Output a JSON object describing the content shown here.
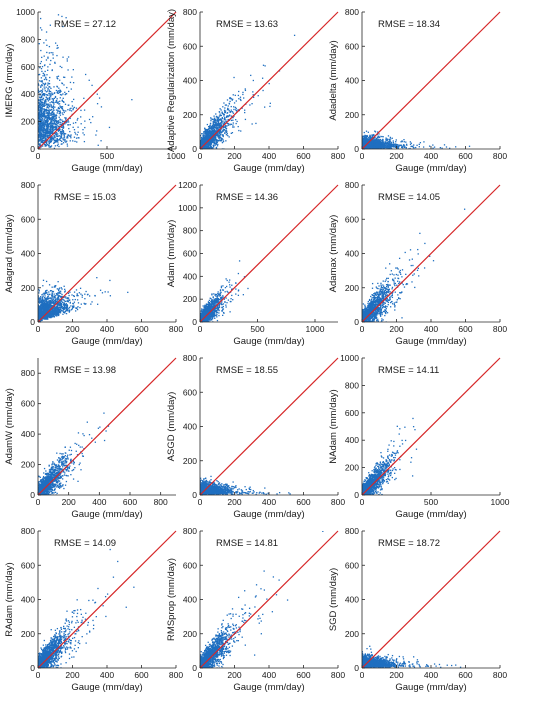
{
  "figure": {
    "colors": {
      "scatter": "#1f6fc0",
      "one_to_one_line": "#d62728",
      "axis": "#262626"
    }
  },
  "chart_data": [
    {
      "type": "scatter",
      "ylabel": "IMERG (mm/day)",
      "xlabel": "Gauge (mm/day)",
      "annotation": "RMSE = 27.12",
      "xlim": [
        0,
        1000
      ],
      "ylim": [
        0,
        1000
      ],
      "xticks": [
        0,
        500,
        1000
      ],
      "yticks": [
        0,
        200,
        400,
        600,
        800,
        1000
      ],
      "pattern": "imerg",
      "one_to_one_line": true
    },
    {
      "type": "scatter",
      "ylabel": "Adaptive Regularization (mm/day)",
      "xlabel": "Gauge (mm/day)",
      "annotation": "RMSE = 13.63",
      "xlim": [
        0,
        800
      ],
      "ylim": [
        0,
        800
      ],
      "xticks": [
        0,
        200,
        400,
        600,
        800
      ],
      "yticks": [
        0,
        200,
        400,
        600,
        800
      ],
      "pattern": "diag",
      "one_to_one_line": true
    },
    {
      "type": "scatter",
      "ylabel": "Adadelta (mm/day)",
      "xlabel": "Gauge (mm/day)",
      "annotation": "RMSE = 18.34",
      "xlim": [
        0,
        800
      ],
      "ylim": [
        0,
        800
      ],
      "xticks": [
        0,
        200,
        400,
        600,
        800
      ],
      "yticks": [
        0,
        200,
        400,
        600,
        800
      ],
      "pattern": "flat",
      "one_to_one_line": true
    },
    {
      "type": "scatter",
      "ylabel": "Adagrad (mm/day)",
      "xlabel": "Gauge (mm/day)",
      "annotation": "RMSE = 15.03",
      "xlim": [
        0,
        800
      ],
      "ylim": [
        0,
        800
      ],
      "xticks": [
        0,
        200,
        400,
        600,
        800
      ],
      "yticks": [
        0,
        200,
        400,
        600,
        800
      ],
      "pattern": "adagrad",
      "one_to_one_line": true
    },
    {
      "type": "scatter",
      "ylabel": "Adam (mm/day)",
      "xlabel": "Gauge (mm/day)",
      "annotation": "RMSE = 14.36",
      "xlim": [
        0,
        1200
      ],
      "ylim": [
        0,
        1200
      ],
      "xticks": [
        0,
        500,
        1000
      ],
      "yticks": [
        0,
        200,
        400,
        600,
        800,
        1000,
        1200
      ],
      "pattern": "diag",
      "one_to_one_line": true
    },
    {
      "type": "scatter",
      "ylabel": "Adamax (mm/day)",
      "xlabel": "Gauge (mm/day)",
      "annotation": "RMSE = 14.05",
      "xlim": [
        0,
        800
      ],
      "ylim": [
        0,
        800
      ],
      "xticks": [
        0,
        200,
        400,
        600,
        800
      ],
      "yticks": [
        0,
        200,
        400,
        600,
        800
      ],
      "pattern": "diag",
      "one_to_one_line": true
    },
    {
      "type": "scatter",
      "ylabel": "AdamW (mm/day)",
      "xlabel": "Gauge (mm/day)",
      "annotation": "RMSE = 13.98",
      "xlim": [
        0,
        900
      ],
      "ylim": [
        0,
        900
      ],
      "xticks": [
        0,
        200,
        400,
        600,
        800
      ],
      "yticks": [
        0,
        200,
        400,
        600,
        800
      ],
      "pattern": "diag",
      "one_to_one_line": true
    },
    {
      "type": "scatter",
      "ylabel": "ASGD (mm/day)",
      "xlabel": "Gauge (mm/day)",
      "annotation": "RMSE = 18.55",
      "xlim": [
        0,
        800
      ],
      "ylim": [
        0,
        800
      ],
      "xticks": [
        0,
        200,
        400,
        600,
        800
      ],
      "yticks": [
        0,
        200,
        400,
        600,
        800
      ],
      "pattern": "flat",
      "one_to_one_line": true
    },
    {
      "type": "scatter",
      "ylabel": "NAdam (mm/day)",
      "xlabel": "Gauge (mm/day)",
      "annotation": "RMSE = 14.11",
      "xlim": [
        0,
        1000
      ],
      "ylim": [
        0,
        1000
      ],
      "xticks": [
        0,
        500,
        1000
      ],
      "yticks": [
        0,
        200,
        400,
        600,
        800,
        1000
      ],
      "pattern": "diag",
      "one_to_one_line": true
    },
    {
      "type": "scatter",
      "ylabel": "RAdam (mm/day)",
      "xlabel": "Gauge (mm/day)",
      "annotation": "RMSE = 14.09",
      "xlim": [
        0,
        800
      ],
      "ylim": [
        0,
        800
      ],
      "xticks": [
        0,
        200,
        400,
        600,
        800
      ],
      "yticks": [
        0,
        200,
        400,
        600,
        800
      ],
      "pattern": "diag",
      "one_to_one_line": true
    },
    {
      "type": "scatter",
      "ylabel": "RMSprop (mm/day)",
      "xlabel": "Gauge (mm/day)",
      "annotation": "RMSE = 14.81",
      "xlim": [
        0,
        800
      ],
      "ylim": [
        0,
        800
      ],
      "xticks": [
        0,
        200,
        400,
        600,
        800
      ],
      "yticks": [
        0,
        200,
        400,
        600,
        800
      ],
      "pattern": "diag",
      "one_to_one_line": true
    },
    {
      "type": "scatter",
      "ylabel": "SGD (mm/day)",
      "xlabel": "Gauge (mm/day)",
      "annotation": "RMSE = 18.72",
      "xlim": [
        0,
        800
      ],
      "ylim": [
        0,
        800
      ],
      "xticks": [
        0,
        200,
        400,
        600,
        800
      ],
      "yticks": [
        0,
        200,
        400,
        600,
        800
      ],
      "pattern": "flat",
      "one_to_one_line": true
    }
  ]
}
